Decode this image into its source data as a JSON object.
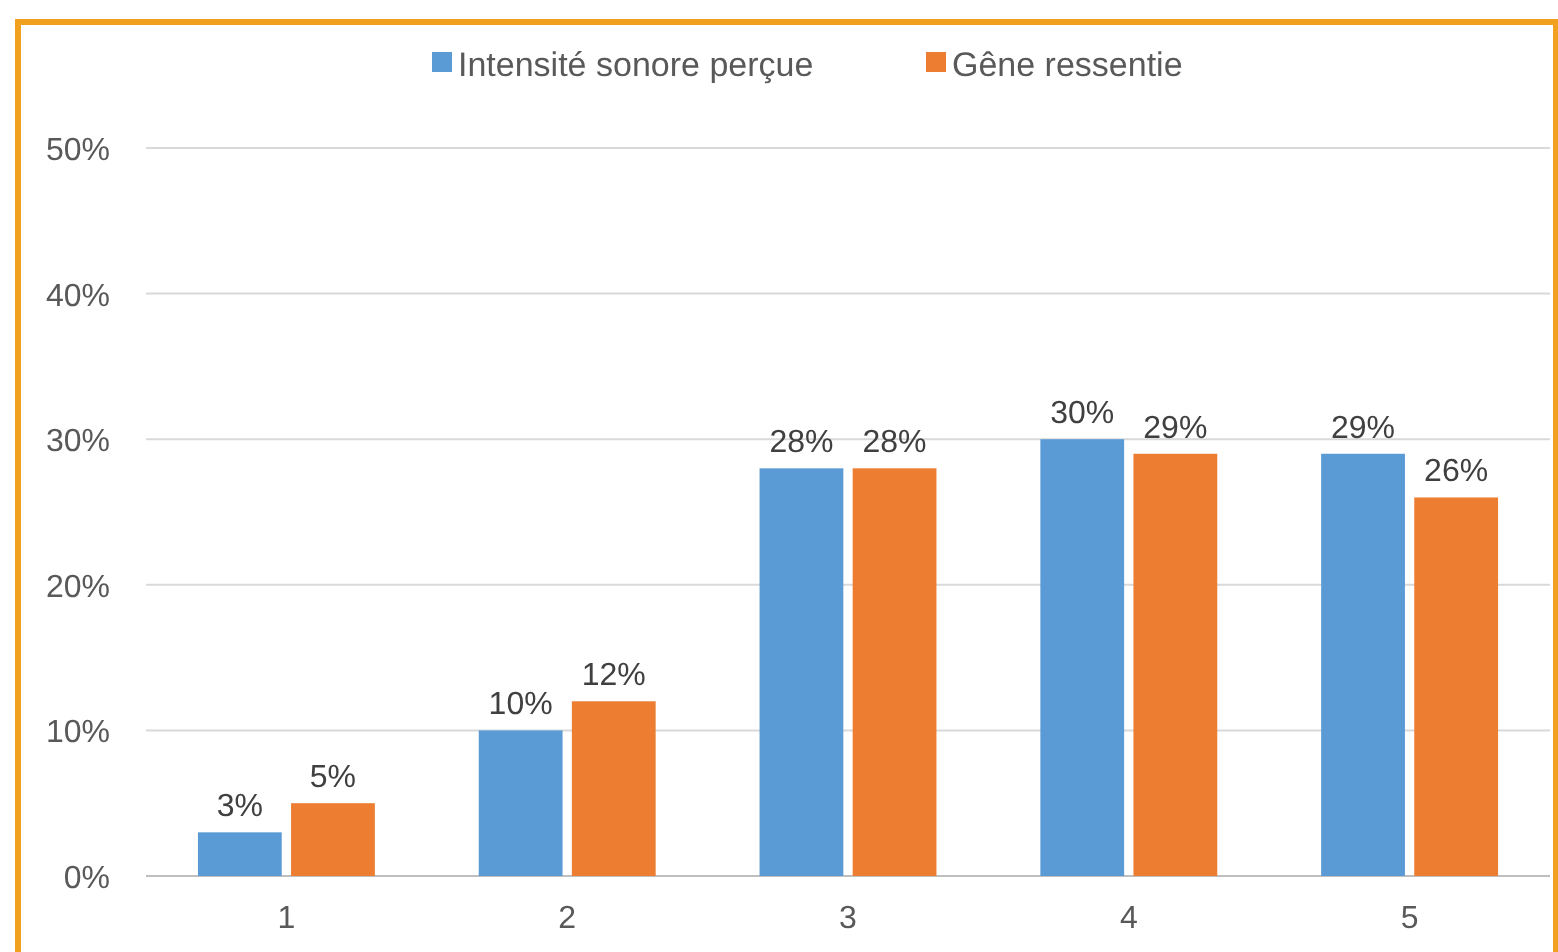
{
  "chart_data": {
    "type": "bar",
    "categories": [
      "1",
      "2",
      "3",
      "4",
      "5"
    ],
    "series": [
      {
        "name": "Intensité sonore perçue",
        "color": "#5b9bd5",
        "values": [
          3,
          10,
          28,
          30,
          29
        ]
      },
      {
        "name": "Gêne ressentie",
        "color": "#ed7d31",
        "values": [
          5,
          12,
          28,
          29,
          26
        ]
      }
    ],
    "ylim": [
      0,
      50
    ],
    "yticks": [
      {
        "value": 0,
        "label": "0%"
      },
      {
        "value": 10,
        "label": "10%"
      },
      {
        "value": 20,
        "label": "20%"
      },
      {
        "value": 30,
        "label": "30%"
      },
      {
        "value": 40,
        "label": "40%"
      },
      {
        "value": 50,
        "label": "50%"
      }
    ],
    "grid": "y",
    "legend": "top",
    "value_labels": [
      [
        "3%",
        "10%",
        "28%",
        "30%",
        "29%"
      ],
      [
        "5%",
        "12%",
        "28%",
        "29%",
        "26%"
      ]
    ]
  }
}
